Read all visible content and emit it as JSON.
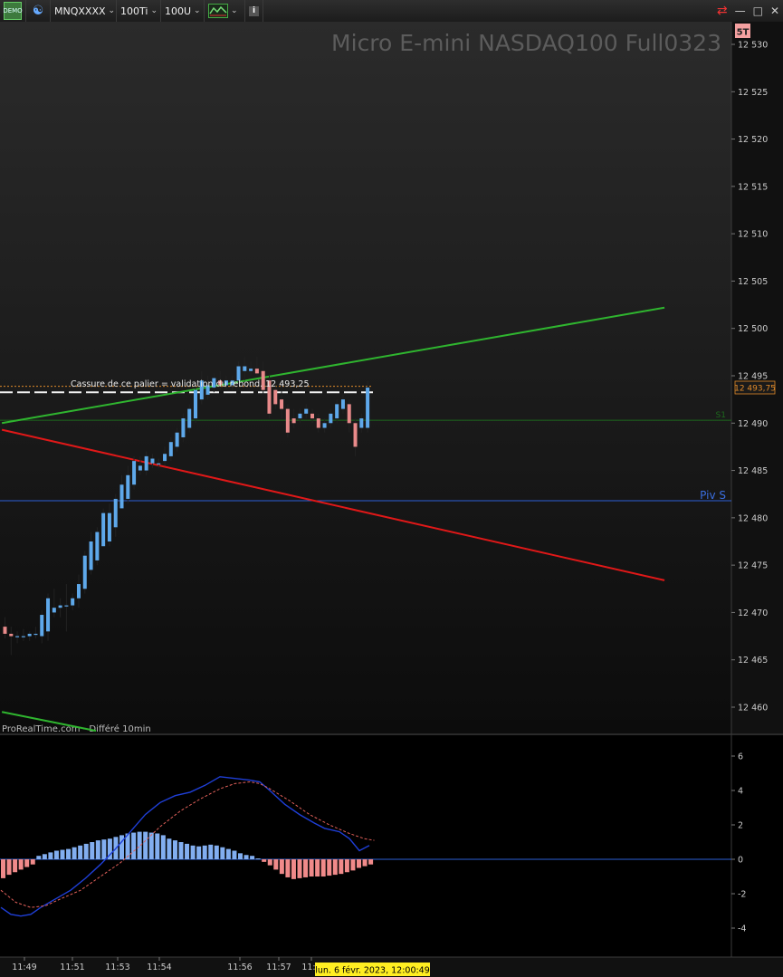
{
  "toolbar": {
    "demo_label": "DEMO",
    "symbol": "MNQXXXX",
    "interval": "100Ti",
    "units": "100U",
    "info_label": "i",
    "icons": [
      "demo-icon",
      "link-icon",
      "chart-style-icon",
      "info-icon",
      "sync-icon",
      "minimize-icon",
      "maximize-icon",
      "close-icon"
    ]
  },
  "chart_data": {
    "type": "candlestick",
    "title": "Micro E-mini NASDAQ100 Full0323",
    "timeframe_badge": "5T",
    "watermark": "ProRealTime.com - Différé 10min",
    "crosshair_label": "lun. 6 févr. 2023, 12:00:49",
    "x_ticks": [
      "11:49",
      "11:51",
      "11:53",
      "11:54",
      "11:56",
      "11:57",
      "11:5"
    ],
    "price_axis": {
      "ticks": [
        "12 530",
        "12 525",
        "12 520",
        "12 515",
        "12 510",
        "12 505",
        "12 500",
        "12 495",
        "12 490",
        "12 485",
        "12 480",
        "12 475",
        "12 470",
        "12 465",
        "12 460"
      ],
      "range": [
        12456.5,
        12535
      ],
      "current_price_label": "12 493,75",
      "current_price": 12493.75
    },
    "annotations": {
      "level_text": "Cassure de ce palier = validation du rebond. 12 493,25",
      "level_price": 12493.25,
      "dashed_level_price": 12493.6,
      "piv_label": "Piv S",
      "piv_price": 12481.8,
      "s1_label": "S1",
      "s1_price": 12490.3
    },
    "candles": [
      {
        "o": 12468.5,
        "h": 12469.5,
        "l": 12467.25,
        "c": 12467.75
      },
      {
        "o": 12467.75,
        "h": 12468.5,
        "l": 12465.5,
        "c": 12467.5
      },
      {
        "o": 12467.5,
        "h": 12468.0,
        "l": 12466.75,
        "c": 12467.5
      },
      {
        "o": 12467.5,
        "h": 12468.25,
        "l": 12467.0,
        "c": 12467.5
      },
      {
        "o": 12467.5,
        "h": 12468.0,
        "l": 12467.0,
        "c": 12467.75
      },
      {
        "o": 12467.75,
        "h": 12468.5,
        "l": 12467.25,
        "c": 12467.75
      },
      {
        "o": 12467.5,
        "h": 12470.25,
        "l": 12466.75,
        "c": 12469.75
      },
      {
        "o": 12468.0,
        "h": 12472.0,
        "l": 12467.0,
        "c": 12471.5
      },
      {
        "o": 12470.0,
        "h": 12472.5,
        "l": 12469.5,
        "c": 12470.5
      },
      {
        "o": 12470.5,
        "h": 12471.5,
        "l": 12469.5,
        "c": 12470.75
      },
      {
        "o": 12470.75,
        "h": 12473.0,
        "l": 12468.0,
        "c": 12470.75
      },
      {
        "o": 12470.75,
        "h": 12472.0,
        "l": 12470.25,
        "c": 12471.5
      },
      {
        "o": 12471.5,
        "h": 12474.0,
        "l": 12470.5,
        "c": 12473.0
      },
      {
        "o": 12472.5,
        "h": 12476.5,
        "l": 12472.0,
        "c": 12476.0
      },
      {
        "o": 12474.5,
        "h": 12478.5,
        "l": 12474.0,
        "c": 12477.5
      },
      {
        "o": 12475.5,
        "h": 12479.0,
        "l": 12475.0,
        "c": 12478.5
      },
      {
        "o": 12477.0,
        "h": 12481.0,
        "l": 12477.0,
        "c": 12480.5
      },
      {
        "o": 12477.5,
        "h": 12481.5,
        "l": 12477.0,
        "c": 12480.5
      },
      {
        "o": 12479.0,
        "h": 12482.5,
        "l": 12478.0,
        "c": 12482.0
      },
      {
        "o": 12481.0,
        "h": 12484.5,
        "l": 12481.0,
        "c": 12483.5
      },
      {
        "o": 12482.0,
        "h": 12485.5,
        "l": 12481.5,
        "c": 12484.5
      },
      {
        "o": 12483.5,
        "h": 12486.5,
        "l": 12483.0,
        "c": 12486.0
      },
      {
        "o": 12485.0,
        "h": 12486.5,
        "l": 12484.5,
        "c": 12485.5
      },
      {
        "o": 12485.0,
        "h": 12487.0,
        "l": 12484.5,
        "c": 12486.5
      },
      {
        "o": 12485.75,
        "h": 12486.75,
        "l": 12485.25,
        "c": 12486.25
      },
      {
        "o": 12485.75,
        "h": 12486.25,
        "l": 12485.25,
        "c": 12485.75
      },
      {
        "o": 12486.0,
        "h": 12487.5,
        "l": 12485.5,
        "c": 12486.75
      },
      {
        "o": 12486.5,
        "h": 12488.5,
        "l": 12486.0,
        "c": 12488.0
      },
      {
        "o": 12487.5,
        "h": 12489.5,
        "l": 12487.0,
        "c": 12489.0
      },
      {
        "o": 12488.5,
        "h": 12491.0,
        "l": 12488.0,
        "c": 12490.5
      },
      {
        "o": 12489.5,
        "h": 12492.0,
        "l": 12489.0,
        "c": 12491.5
      },
      {
        "o": 12490.5,
        "h": 12494.0,
        "l": 12490.0,
        "c": 12493.5
      },
      {
        "o": 12492.5,
        "h": 12495.5,
        "l": 12492.0,
        "c": 12494.5
      },
      {
        "o": 12493.0,
        "h": 12495.0,
        "l": 12492.5,
        "c": 12494.0
      },
      {
        "o": 12493.75,
        "h": 12495.25,
        "l": 12493.25,
        "c": 12494.75
      },
      {
        "o": 12494.5,
        "h": 12495.5,
        "l": 12493.5,
        "c": 12494.0
      },
      {
        "o": 12494.0,
        "h": 12495.0,
        "l": 12493.5,
        "c": 12494.5
      },
      {
        "o": 12494.0,
        "h": 12495.0,
        "l": 12493.5,
        "c": 12494.5
      },
      {
        "o": 12494.5,
        "h": 12496.5,
        "l": 12494.0,
        "c": 12496.0
      },
      {
        "o": 12495.5,
        "h": 12497.0,
        "l": 12494.5,
        "c": 12496.0
      },
      {
        "o": 12495.5,
        "h": 12496.5,
        "l": 12495.0,
        "c": 12495.75
      },
      {
        "o": 12495.75,
        "h": 12497.0,
        "l": 12495.0,
        "c": 12495.25
      },
      {
        "o": 12495.5,
        "h": 12496.5,
        "l": 12493.0,
        "c": 12493.5
      },
      {
        "o": 12494.5,
        "h": 12495.0,
        "l": 12490.5,
        "c": 12491.0
      },
      {
        "o": 12493.5,
        "h": 12494.5,
        "l": 12491.5,
        "c": 12492.0
      },
      {
        "o": 12492.5,
        "h": 12493.5,
        "l": 12490.5,
        "c": 12491.5
      },
      {
        "o": 12491.5,
        "h": 12492.0,
        "l": 12488.5,
        "c": 12489.0
      },
      {
        "o": 12490.5,
        "h": 12491.5,
        "l": 12489.5,
        "c": 12490.0
      },
      {
        "o": 12490.5,
        "h": 12491.5,
        "l": 12490.0,
        "c": 12491.0
      },
      {
        "o": 12491.0,
        "h": 12492.0,
        "l": 12490.5,
        "c": 12491.5
      },
      {
        "o": 12491.0,
        "h": 12491.5,
        "l": 12490.0,
        "c": 12490.5
      },
      {
        "o": 12490.5,
        "h": 12491.0,
        "l": 12489.0,
        "c": 12489.5
      },
      {
        "o": 12489.5,
        "h": 12490.5,
        "l": 12489.0,
        "c": 12490.0
      },
      {
        "o": 12490.0,
        "h": 12491.5,
        "l": 12489.5,
        "c": 12491.0
      },
      {
        "o": 12490.5,
        "h": 12492.5,
        "l": 12490.0,
        "c": 12492.0
      },
      {
        "o": 12491.5,
        "h": 12493.0,
        "l": 12491.0,
        "c": 12492.5
      },
      {
        "o": 12492.0,
        "h": 12492.5,
        "l": 12489.0,
        "c": 12490.0
      },
      {
        "o": 12490.0,
        "h": 12490.5,
        "l": 12486.5,
        "c": 12487.5
      },
      {
        "o": 12489.5,
        "h": 12491.0,
        "l": 12489.0,
        "c": 12490.5
      },
      {
        "o": 12489.5,
        "h": 12494.5,
        "l": 12489.0,
        "c": 12493.75
      }
    ],
    "trendlines": [
      {
        "name": "",
        "color": "#2fb52f",
        "from": [
          -0.5,
          12490.0
        ],
        "to": [
          107.3,
          12502.2
        ]
      },
      {
        "name": "",
        "color": "#e01818",
        "from": [
          -0.5,
          12489.3
        ],
        "to": [
          107.3,
          12473.4
        ]
      },
      {
        "name": "",
        "color": "#2fb52f",
        "from": [
          -0.5,
          12459.5
        ],
        "to": [
          14.8,
          12457.5
        ]
      }
    ],
    "macd": {
      "y_ticks": [
        "6",
        "4",
        "2",
        "0",
        "-2",
        "-4"
      ],
      "ylim": [
        -5.7,
        7.0
      ],
      "histogram": [
        -1.1,
        -0.9,
        -0.75,
        -0.6,
        -0.45,
        -0.3,
        0.2,
        0.3,
        0.4,
        0.5,
        0.55,
        0.6,
        0.7,
        0.8,
        0.9,
        1.0,
        1.1,
        1.15,
        1.2,
        1.3,
        1.4,
        1.5,
        1.55,
        1.6,
        1.6,
        1.55,
        1.5,
        1.4,
        1.2,
        1.1,
        1.0,
        0.9,
        0.8,
        0.75,
        0.8,
        0.85,
        0.8,
        0.7,
        0.6,
        0.5,
        0.35,
        0.25,
        0.2,
        0.05,
        -0.15,
        -0.35,
        -0.6,
        -0.85,
        -1.05,
        -1.15,
        -1.1,
        -1.05,
        -1.0,
        -1.0,
        -1.0,
        -0.95,
        -0.9,
        -0.85,
        -0.75,
        -0.65,
        -0.5,
        -0.4,
        -0.3
      ],
      "macd_line": [
        [
          0,
          -2.8
        ],
        [
          4,
          -3.2
        ],
        [
          8,
          -3.3
        ],
        [
          12,
          -3.2
        ],
        [
          16,
          -2.8
        ],
        [
          22,
          -2.3
        ],
        [
          28,
          -1.8
        ],
        [
          34,
          -1.1
        ],
        [
          40,
          -0.3
        ],
        [
          46,
          0.6
        ],
        [
          52,
          1.6
        ],
        [
          58,
          2.6
        ],
        [
          64,
          3.3
        ],
        [
          70,
          3.7
        ],
        [
          76,
          3.9
        ],
        [
          82,
          4.3
        ],
        [
          88,
          4.8
        ],
        [
          94,
          4.7
        ],
        [
          100,
          4.6
        ],
        [
          104,
          4.5
        ],
        [
          108,
          4.0
        ],
        [
          114,
          3.2
        ],
        [
          120,
          2.6
        ],
        [
          126,
          2.1
        ],
        [
          130,
          1.8
        ],
        [
          136,
          1.6
        ],
        [
          140,
          1.2
        ],
        [
          144,
          0.5
        ],
        [
          148,
          0.8
        ]
      ],
      "signal_line": [
        [
          0,
          -1.8
        ],
        [
          6,
          -2.5
        ],
        [
          12,
          -2.8
        ],
        [
          18,
          -2.7
        ],
        [
          24,
          -2.3
        ],
        [
          32,
          -1.8
        ],
        [
          40,
          -1.0
        ],
        [
          48,
          -0.2
        ],
        [
          56,
          0.8
        ],
        [
          64,
          1.9
        ],
        [
          72,
          2.8
        ],
        [
          80,
          3.5
        ],
        [
          88,
          4.1
        ],
        [
          94,
          4.4
        ],
        [
          100,
          4.5
        ],
        [
          104,
          4.4
        ],
        [
          108,
          4.1
        ],
        [
          116,
          3.4
        ],
        [
          124,
          2.6
        ],
        [
          132,
          2.0
        ],
        [
          140,
          1.5
        ],
        [
          146,
          1.2
        ],
        [
          150,
          1.1
        ]
      ]
    }
  }
}
